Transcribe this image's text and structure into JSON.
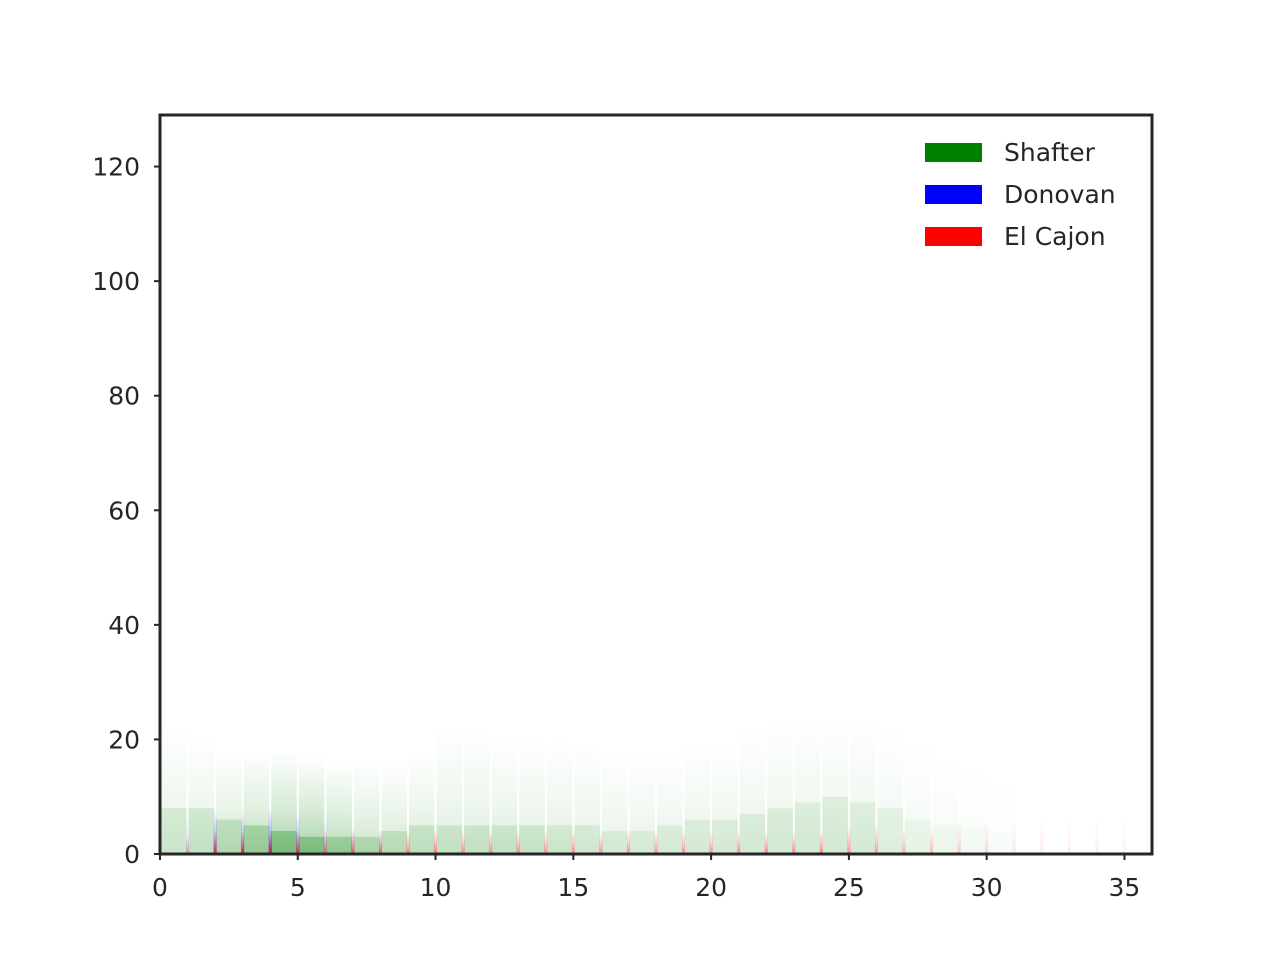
{
  "chart_data": {
    "type": "heatmap",
    "title": "",
    "xlabel": "",
    "ylabel": "",
    "xlim": [
      0,
      36
    ],
    "ylim": [
      0,
      129
    ],
    "xticks": [
      0,
      5,
      10,
      15,
      20,
      25,
      30,
      35
    ],
    "yticks": [
      0,
      20,
      40,
      60,
      80,
      100,
      120
    ],
    "grid": false,
    "legend_position": "top-right",
    "series": [
      {
        "name": "Shafter",
        "color": "#008000",
        "x": [
          0,
          1,
          2,
          3,
          4,
          5,
          6,
          7,
          8,
          9,
          10,
          11,
          12,
          13,
          14,
          15,
          16,
          17,
          18,
          19,
          20,
          21,
          22,
          23,
          24,
          25,
          26,
          27,
          28,
          29,
          30
        ],
        "typical_y": [
          8,
          8,
          6,
          5,
          4,
          3,
          3,
          3,
          4,
          5,
          5,
          5,
          5,
          5,
          5,
          5,
          4,
          4,
          5,
          6,
          6,
          7,
          8,
          9,
          10,
          9,
          8,
          6,
          5,
          5,
          4
        ],
        "max_y": [
          22,
          20,
          18,
          18,
          18,
          17,
          16,
          16,
          16,
          18,
          22,
          22,
          20,
          20,
          20,
          20,
          18,
          18,
          18,
          20,
          20,
          22,
          24,
          24,
          24,
          24,
          22,
          20,
          18,
          16,
          14
        ],
        "intensity": [
          0.35,
          0.4,
          0.55,
          0.75,
          1.0,
          1.0,
          0.8,
          0.6,
          0.5,
          0.45,
          0.4,
          0.4,
          0.4,
          0.38,
          0.35,
          0.32,
          0.3,
          0.28,
          0.28,
          0.28,
          0.28,
          0.3,
          0.3,
          0.3,
          0.3,
          0.28,
          0.22,
          0.16,
          0.12,
          0.08,
          0.05
        ]
      },
      {
        "name": "Donovan",
        "color": "#0000ff",
        "x": [
          1,
          2,
          3,
          4,
          5,
          6,
          7,
          8
        ],
        "typical_y": [
          2,
          3,
          3,
          3,
          3,
          2,
          2,
          2
        ],
        "max_y": [
          6,
          8,
          8,
          8,
          7,
          6,
          5,
          4
        ],
        "intensity": [
          0.2,
          0.55,
          0.5,
          0.7,
          0.5,
          0.3,
          0.25,
          0.2
        ]
      },
      {
        "name": "El Cajon",
        "color": "#ff0000",
        "x": [
          1,
          2,
          3,
          4,
          5,
          6,
          7,
          8,
          9,
          10,
          11,
          12,
          13,
          14,
          15,
          16,
          17,
          18,
          19,
          20,
          21,
          22,
          23,
          24,
          25,
          26,
          27,
          28,
          29,
          30,
          31,
          32,
          33,
          34,
          35
        ],
        "typical_y": [
          1,
          2,
          2,
          2,
          2,
          2,
          2,
          2,
          2,
          2,
          2,
          2,
          2,
          2,
          2,
          2,
          2,
          2,
          2,
          2,
          2,
          2,
          2,
          2,
          2,
          2,
          2,
          2,
          2,
          2,
          2,
          2,
          2,
          2,
          2
        ],
        "max_y": [
          3,
          4,
          4,
          4,
          4,
          4,
          4,
          4,
          4,
          4,
          4,
          4,
          4,
          4,
          4,
          4,
          4,
          4,
          4,
          4,
          4,
          4,
          4,
          4,
          5,
          5,
          5,
          5,
          6,
          6,
          7,
          7,
          7,
          7,
          7
        ],
        "intensity": [
          0.3,
          0.8,
          0.8,
          0.8,
          0.7,
          0.5,
          0.7,
          0.6,
          0.6,
          0.6,
          0.55,
          0.55,
          0.55,
          0.5,
          0.5,
          0.5,
          0.5,
          0.5,
          0.5,
          0.5,
          0.5,
          0.55,
          0.55,
          0.55,
          0.5,
          0.45,
          0.35,
          0.3,
          0.25,
          0.2,
          0.12,
          0.1,
          0.08,
          0.08,
          0.06
        ]
      }
    ]
  }
}
